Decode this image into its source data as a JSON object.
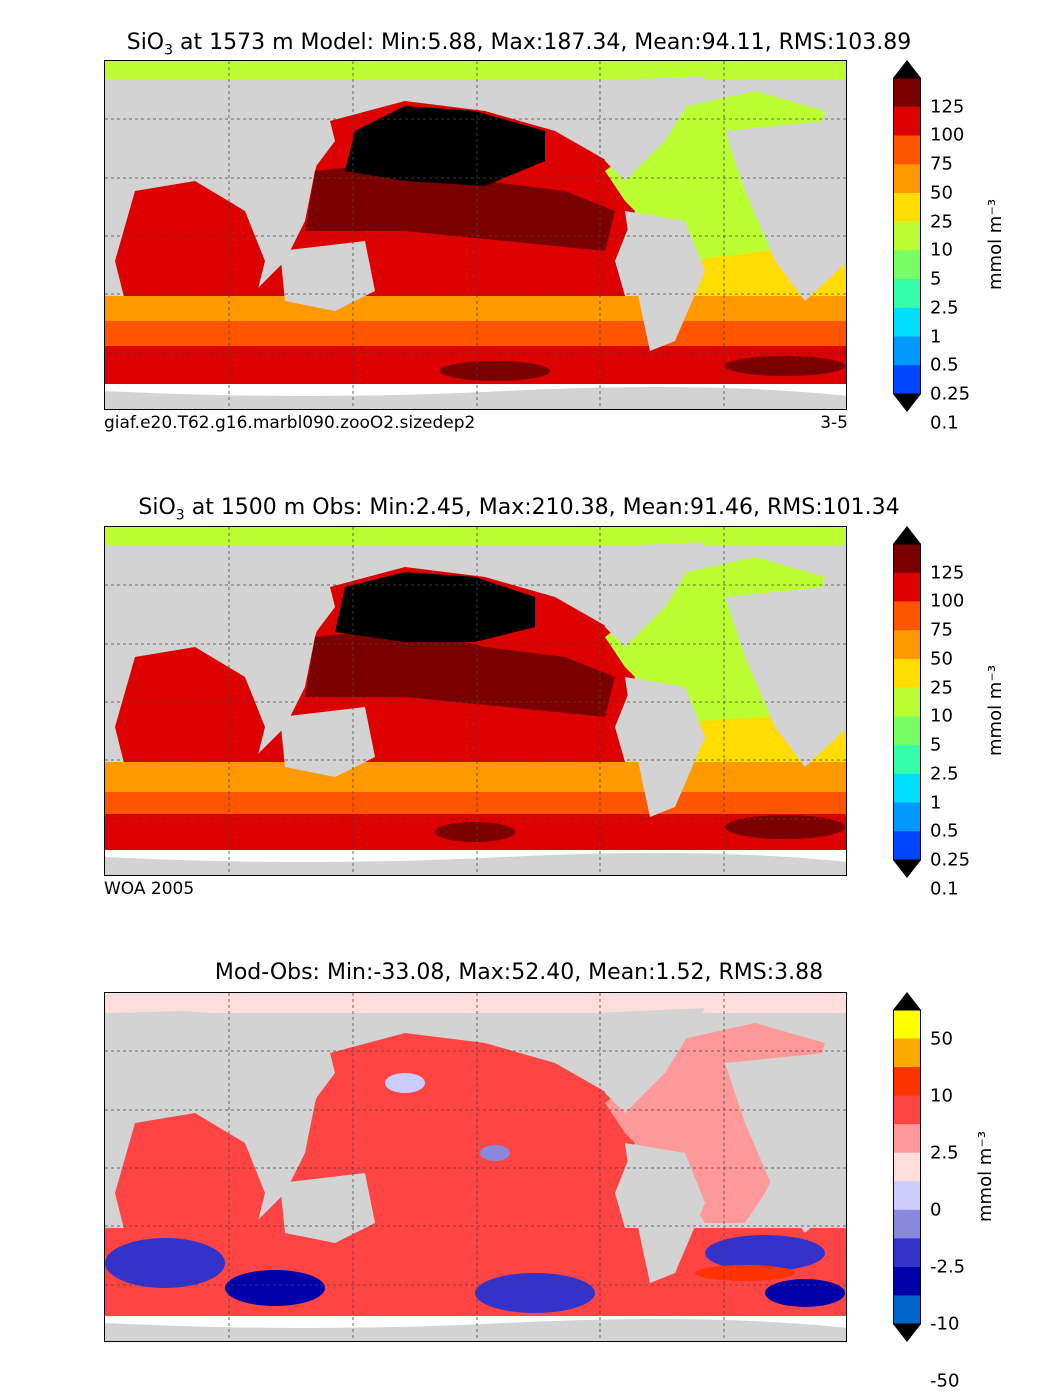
{
  "panels": [
    {
      "title_prefix": "SiO",
      "title_sub": "3",
      "title_rest": " at 1573 m Model: Min:5.88, Max:187.34, Mean:94.11, RMS:103.89",
      "footer_left": "giaf.e20.T62.g16.marbl090.zooO2.sizedep2",
      "footer_right": "3-5",
      "colorbar": {
        "labels": [
          "125",
          "100",
          "75",
          "50",
          "25",
          "10",
          "5",
          "2.5",
          "1",
          "0.5",
          "0.25",
          "0.1"
        ],
        "colors": [
          "#7a0000",
          "#dd0000",
          "#ff5500",
          "#ff9900",
          "#ffdd00",
          "#bbff33",
          "#77ff66",
          "#33ffaa",
          "#00ddff",
          "#0099ff",
          "#0044ff",
          "#0000cc",
          "#000080"
        ],
        "unit": "mmol m⁻³"
      }
    },
    {
      "title_prefix": "SiO",
      "title_sub": "3",
      "title_rest": " at 1500 m Obs: Min:2.45, Max:210.38, Mean:91.46, RMS:101.34",
      "footer_left": "WOA 2005",
      "footer_right": "",
      "colorbar": {
        "labels": [
          "125",
          "100",
          "75",
          "50",
          "25",
          "10",
          "5",
          "2.5",
          "1",
          "0.5",
          "0.25",
          "0.1"
        ],
        "colors": [
          "#7a0000",
          "#dd0000",
          "#ff5500",
          "#ff9900",
          "#ffdd00",
          "#bbff33",
          "#77ff66",
          "#33ffaa",
          "#00ddff",
          "#0099ff",
          "#0044ff",
          "#0000cc",
          "#000080"
        ],
        "unit": "mmol m⁻³"
      }
    },
    {
      "title_prefix": "",
      "title_sub": "",
      "title_rest": "Mod-Obs: Min:-33.08, Max:52.40, Mean:1.52, RMS:3.88",
      "footer_left": "",
      "footer_right": "",
      "colorbar": {
        "labels": [
          "50",
          "10",
          "2.5",
          "0",
          "-2.5",
          "-10",
          "-50"
        ],
        "colors": [
          "#ffff00",
          "#ffaa00",
          "#ff3300",
          "#ff4444",
          "#ff9999",
          "#ffdddd",
          "#ccccff",
          "#8888dd",
          "#3333cc",
          "#0000aa",
          "#0066cc",
          "#00bbee",
          "#00ffff"
        ],
        "unit": "mmol m⁻³"
      }
    }
  ],
  "map_colors": {
    "land": "#d3d3d3",
    "missing": "#ffffff",
    "grid": "#444444"
  }
}
